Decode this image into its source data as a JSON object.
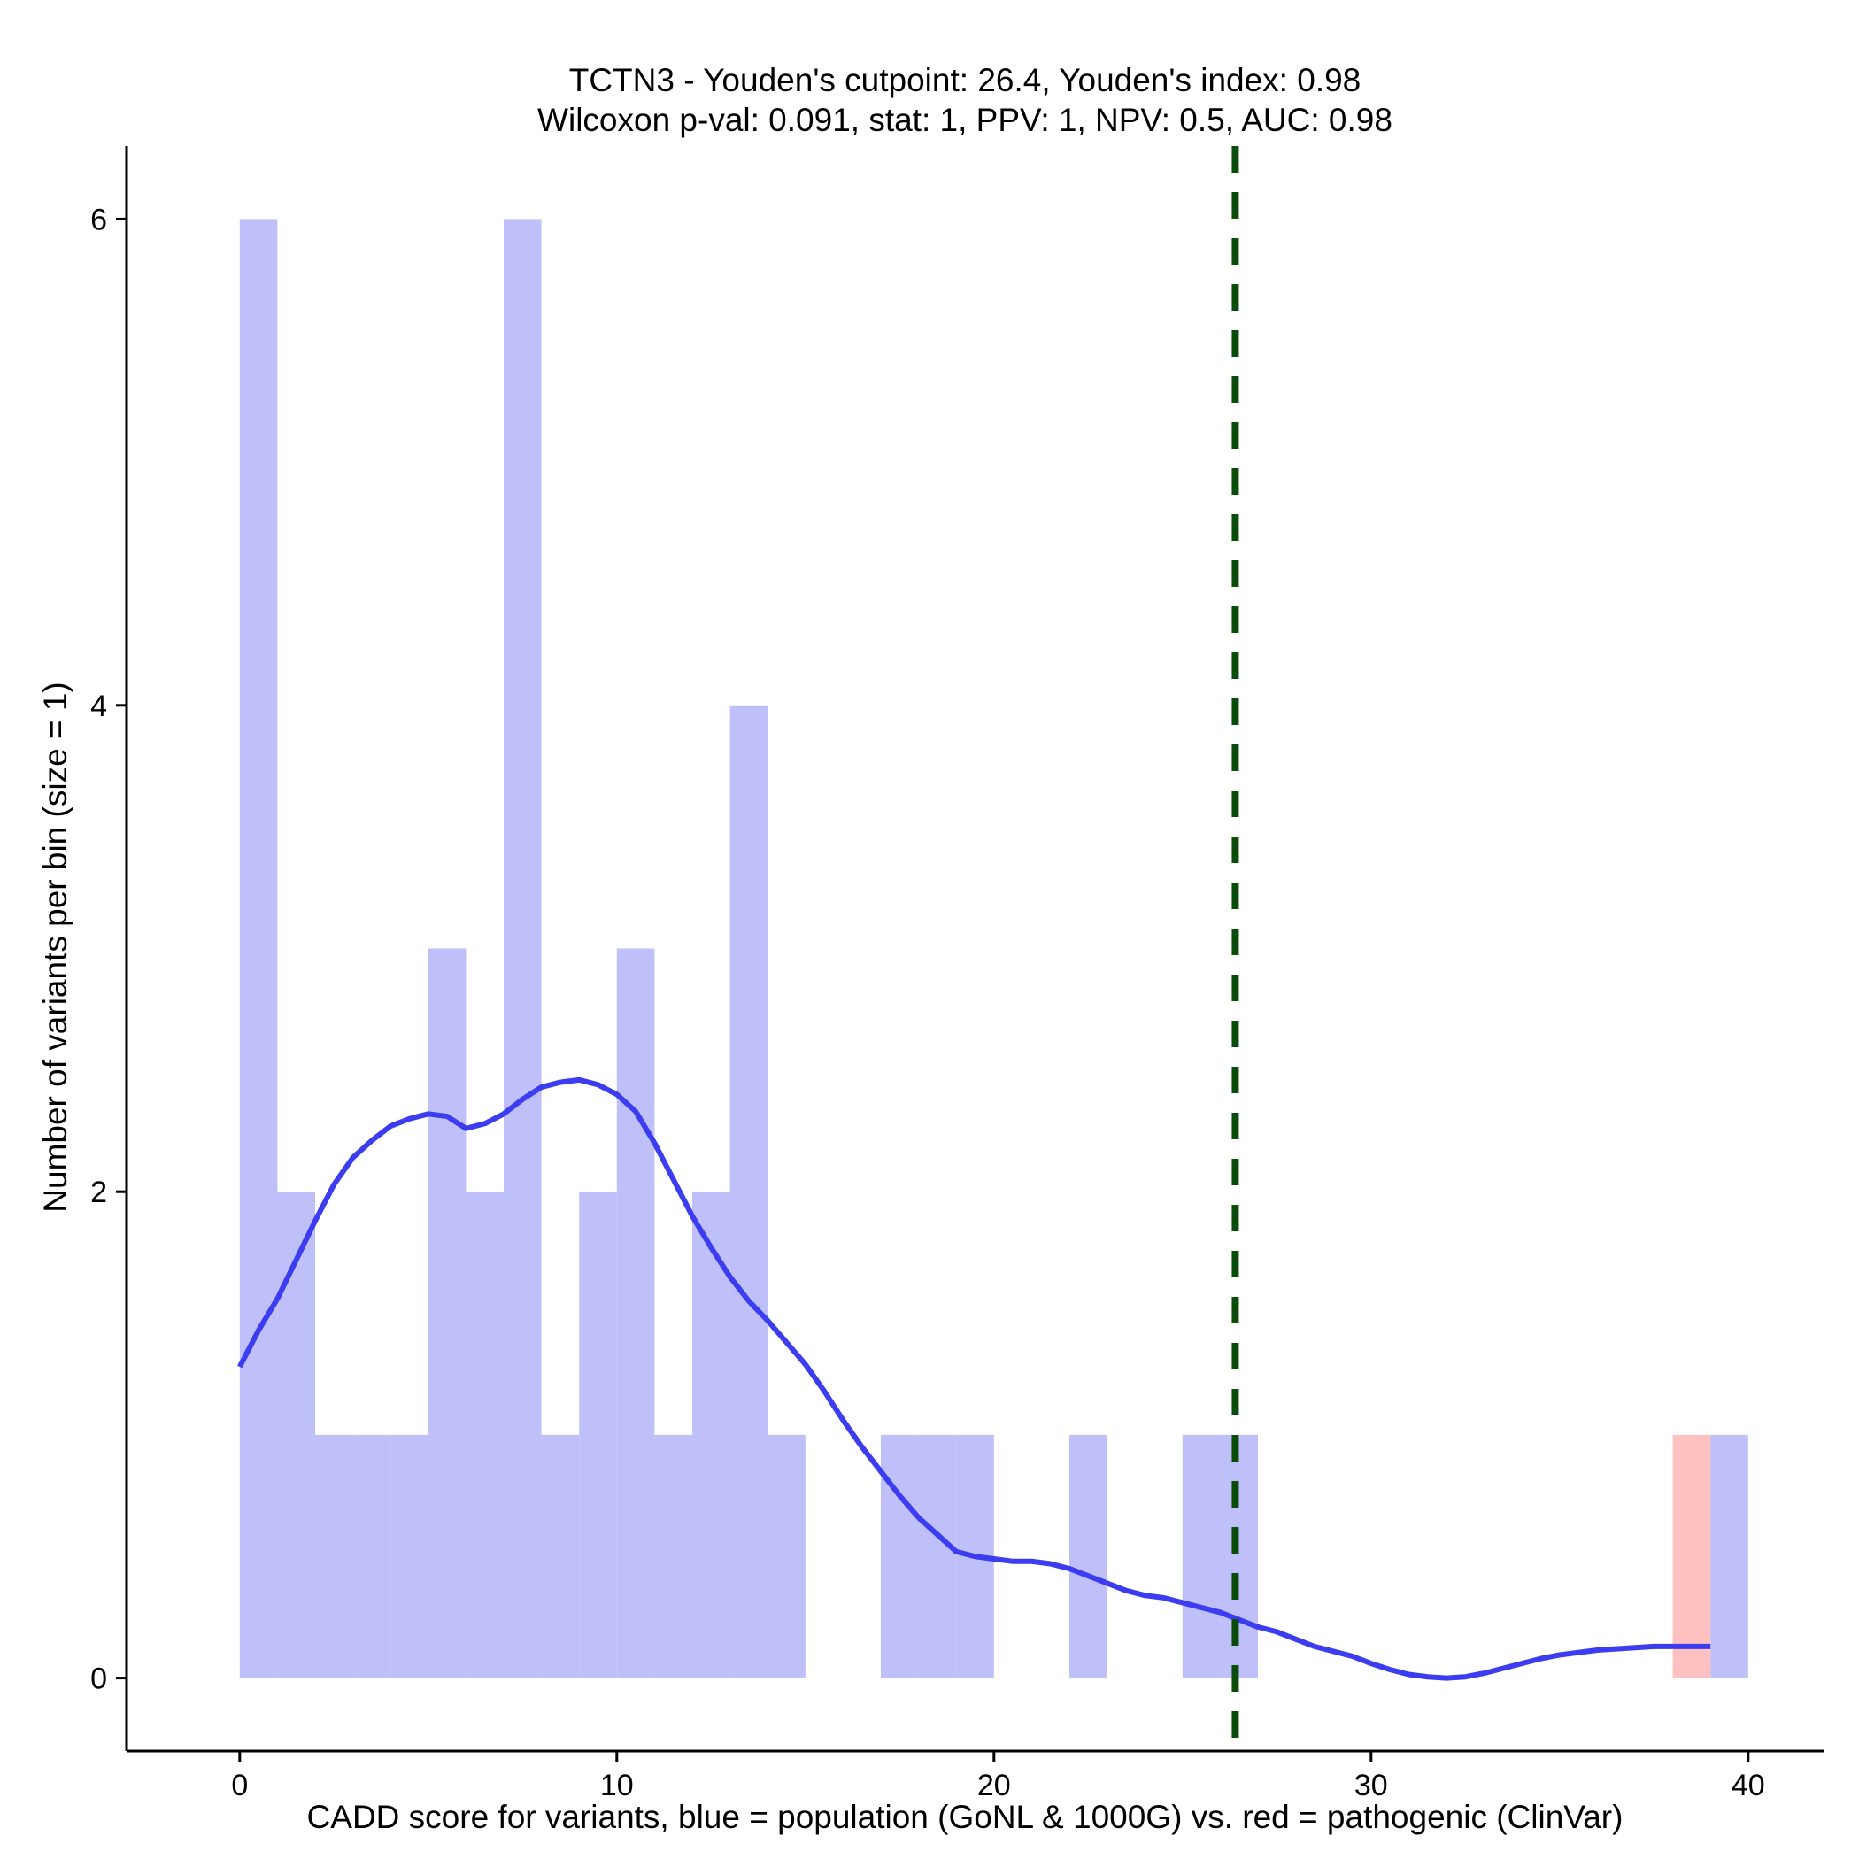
{
  "chart_data": {
    "type": "bar",
    "title": "TCTN3 - Youden's cutpoint: 26.4, Youden's index: 0.98",
    "subtitle": "Wilcoxon p-val: 0.091, stat: 1, PPV: 1, NPV: 0.5, AUC: 0.98",
    "xlabel": "CADD score for variants, blue = population (GoNL & 1000G) vs. red = pathogenic (ClinVar)",
    "ylabel": "Number of variants per bin (size = 1)",
    "xlim": [
      -3,
      42
    ],
    "ylim": [
      -0.3,
      6.3
    ],
    "xticks": [
      0,
      10,
      20,
      30,
      40
    ],
    "yticks": [
      0,
      2,
      4,
      6
    ],
    "bin_size": 1,
    "colors": {
      "population": "#bfbffa",
      "pathogenic": "#ffc0c0",
      "density": "#3c3cf0",
      "cutpoint": "#0a4d0a"
    },
    "series": [
      {
        "group": "population",
        "bins": [
          {
            "x0": 0,
            "x1": 1,
            "count": 6
          },
          {
            "x0": 1,
            "x1": 2,
            "count": 2
          },
          {
            "x0": 2,
            "x1": 3,
            "count": 1
          },
          {
            "x0": 3,
            "x1": 4,
            "count": 1
          },
          {
            "x0": 4,
            "x1": 5,
            "count": 1
          },
          {
            "x0": 5,
            "x1": 6,
            "count": 3
          },
          {
            "x0": 6,
            "x1": 7,
            "count": 2
          },
          {
            "x0": 7,
            "x1": 8,
            "count": 6
          },
          {
            "x0": 8,
            "x1": 9,
            "count": 1
          },
          {
            "x0": 9,
            "x1": 10,
            "count": 2
          },
          {
            "x0": 10,
            "x1": 11,
            "count": 3
          },
          {
            "x0": 11,
            "x1": 12,
            "count": 1
          },
          {
            "x0": 12,
            "x1": 13,
            "count": 2
          },
          {
            "x0": 13,
            "x1": 14,
            "count": 4
          },
          {
            "x0": 14,
            "x1": 15,
            "count": 1
          },
          {
            "x0": 17,
            "x1": 18,
            "count": 1
          },
          {
            "x0": 18,
            "x1": 19,
            "count": 1
          },
          {
            "x0": 19,
            "x1": 20,
            "count": 1
          },
          {
            "x0": 22,
            "x1": 23,
            "count": 1
          },
          {
            "x0": 25,
            "x1": 26,
            "count": 1
          },
          {
            "x0": 26,
            "x1": 27,
            "count": 1
          },
          {
            "x0": 39,
            "x1": 40,
            "count": 1
          }
        ]
      },
      {
        "group": "pathogenic",
        "bins": [
          {
            "x0": 38,
            "x1": 39,
            "count": 1
          }
        ]
      }
    ],
    "density_curve": {
      "x": [
        0,
        0.5,
        1,
        1.5,
        2,
        2.5,
        3,
        3.5,
        4,
        4.5,
        5,
        5.5,
        6,
        6.5,
        7,
        7.5,
        8,
        8.5,
        9,
        9.5,
        10,
        10.5,
        11,
        11.5,
        12,
        12.5,
        13,
        13.5,
        14,
        14.5,
        15,
        15.5,
        16,
        16.5,
        17,
        17.5,
        18,
        18.5,
        19,
        19.5,
        20,
        20.5,
        21,
        21.5,
        22,
        22.5,
        23,
        23.5,
        24,
        24.5,
        25,
        25.5,
        26,
        26.5,
        27,
        27.5,
        28,
        28.5,
        29,
        29.5,
        30,
        30.5,
        31,
        31.5,
        32,
        32.5,
        33,
        33.5,
        34,
        34.5,
        35,
        35.5,
        36,
        36.5,
        37,
        37.5,
        38,
        38.5,
        39
      ],
      "y": [
        1.28,
        1.43,
        1.56,
        1.72,
        1.88,
        2.03,
        2.14,
        2.21,
        2.27,
        2.3,
        2.32,
        2.31,
        2.26,
        2.28,
        2.32,
        2.38,
        2.43,
        2.45,
        2.46,
        2.44,
        2.4,
        2.33,
        2.2,
        2.05,
        1.9,
        1.77,
        1.65,
        1.55,
        1.47,
        1.38,
        1.29,
        1.18,
        1.06,
        0.95,
        0.85,
        0.75,
        0.66,
        0.59,
        0.52,
        0.5,
        0.49,
        0.48,
        0.48,
        0.47,
        0.45,
        0.42,
        0.39,
        0.36,
        0.34,
        0.33,
        0.31,
        0.29,
        0.27,
        0.24,
        0.21,
        0.19,
        0.16,
        0.13,
        0.11,
        0.09,
        0.06,
        0.035,
        0.015,
        0.005,
        0.0,
        0.005,
        0.02,
        0.04,
        0.06,
        0.08,
        0.095,
        0.105,
        0.115,
        0.12,
        0.125,
        0.13,
        0.13,
        0.13,
        0.13
      ]
    },
    "cutpoint": 26.4,
    "grid": false
  }
}
